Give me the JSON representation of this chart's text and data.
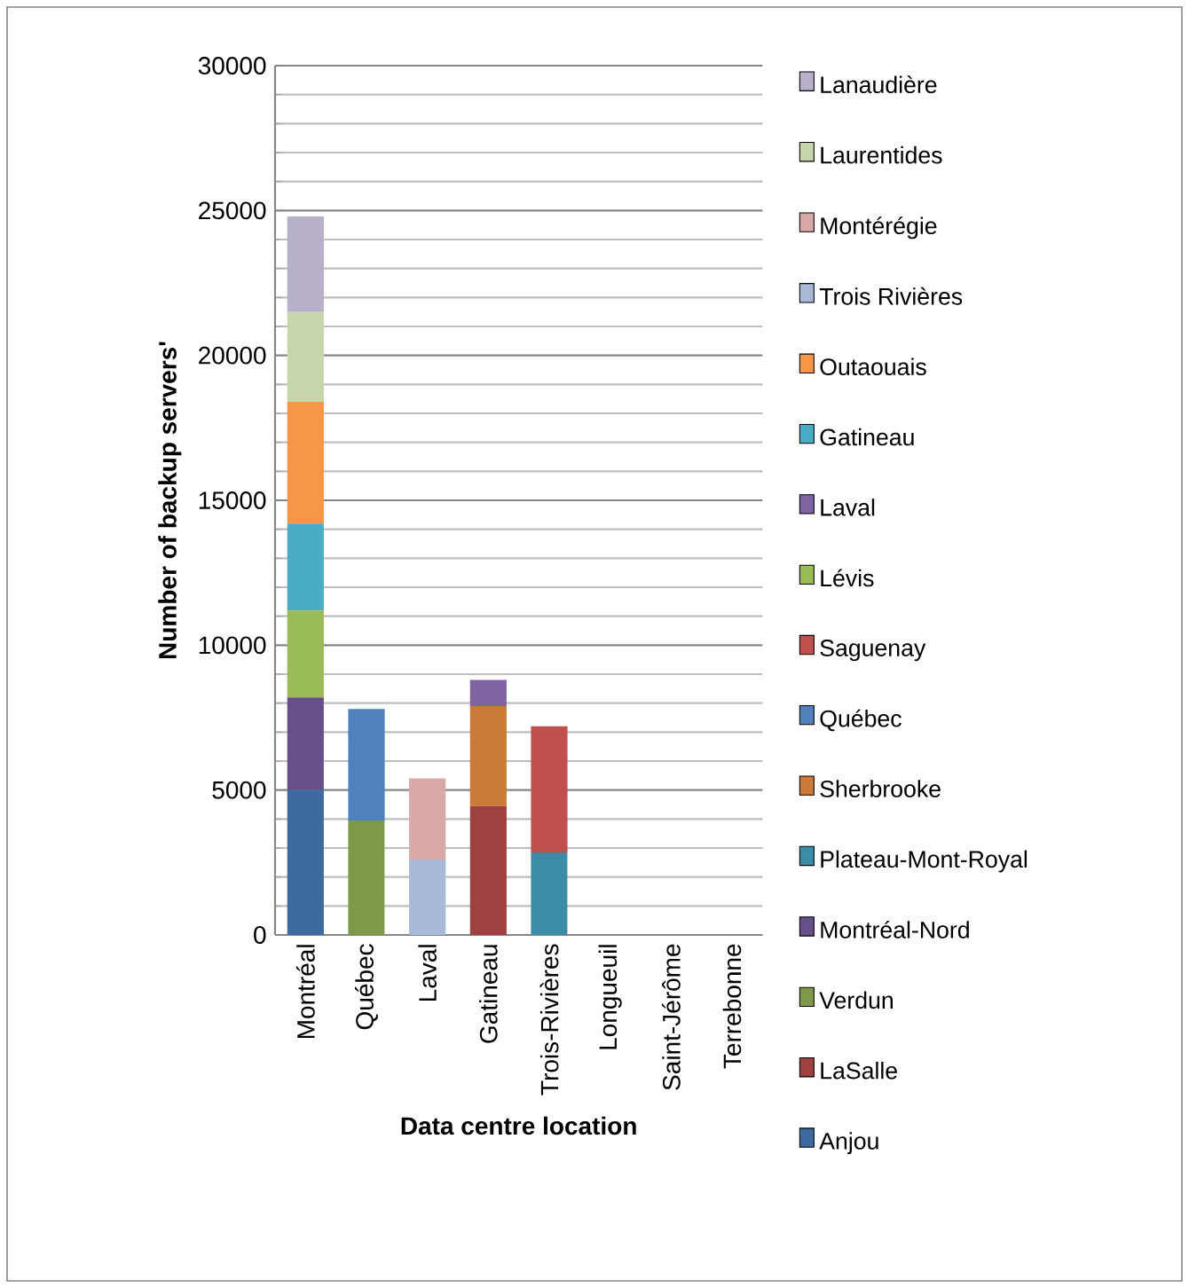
{
  "chart_data": {
    "type": "bar",
    "stacked": true,
    "xlabel": "Data centre location",
    "ylabel": "Number of backup servers'",
    "categories": [
      "Montréal",
      "Québec",
      "Laval",
      "Gatineau",
      "Trois-Rivières",
      "Longueuil",
      "Saint-Jérôme",
      "Terrebonne"
    ],
    "ylim": [
      0,
      30000
    ],
    "yticks": [
      0,
      5000,
      10000,
      15000,
      20000,
      25000,
      30000
    ],
    "grid": "y",
    "legend": "right",
    "series": [
      {
        "name": "Anjou",
        "color": "#3e6b9f",
        "values": [
          5000,
          null,
          null,
          null,
          null,
          null,
          null,
          null
        ]
      },
      {
        "name": "LaSalle",
        "color": "#9e4140",
        "values": [
          null,
          null,
          null,
          4450,
          null,
          null,
          null,
          null
        ]
      },
      {
        "name": "Verdun",
        "color": "#7e9a48",
        "values": [
          null,
          3950,
          null,
          null,
          null,
          null,
          null,
          null
        ]
      },
      {
        "name": "Montréal-Nord",
        "color": "#674f89",
        "values": [
          3200,
          null,
          null,
          null,
          null,
          null,
          null,
          null
        ]
      },
      {
        "name": "Plateau-Mont-Royal",
        "color": "#3b8ca6",
        "values": [
          null,
          null,
          null,
          null,
          2850,
          null,
          null,
          null
        ]
      },
      {
        "name": "Sherbrooke",
        "color": "#cc7a38",
        "values": [
          null,
          null,
          null,
          3450,
          null,
          null,
          null,
          null
        ]
      },
      {
        "name": "Québec",
        "color": "#4f81bd",
        "values": [
          null,
          3850,
          null,
          null,
          null,
          null,
          null,
          null
        ]
      },
      {
        "name": "Saguenay",
        "color": "#c0504d",
        "values": [
          null,
          null,
          null,
          null,
          4350,
          null,
          null,
          null
        ]
      },
      {
        "name": "Lévis",
        "color": "#9bbb59",
        "values": [
          3000,
          null,
          null,
          null,
          null,
          null,
          null,
          null
        ]
      },
      {
        "name": "Laval",
        "color": "#8064a2",
        "values": [
          null,
          null,
          null,
          900,
          null,
          null,
          null,
          null
        ]
      },
      {
        "name": "Gatineau",
        "color": "#4bacc6",
        "values": [
          3000,
          null,
          null,
          null,
          null,
          null,
          null,
          null
        ]
      },
      {
        "name": "Outaouais",
        "color": "#f79646",
        "values": [
          4200,
          null,
          null,
          null,
          null,
          null,
          null,
          null
        ]
      },
      {
        "name": "Trois Rivières",
        "color": "#a9b9d8",
        "values": [
          null,
          null,
          2600,
          null,
          null,
          null,
          null,
          null
        ]
      },
      {
        "name": "Montérégie",
        "color": "#d8a9a8",
        "values": [
          null,
          null,
          2800,
          null,
          null,
          null,
          null,
          null
        ]
      },
      {
        "name": "Laurentides",
        "color": "#c5d6aa",
        "values": [
          3100,
          null,
          null,
          null,
          null,
          null,
          null,
          null
        ]
      },
      {
        "name": "Lanaudière",
        "color": "#b8afcb",
        "values": [
          3300,
          null,
          null,
          null,
          null,
          null,
          null,
          null
        ]
      }
    ]
  }
}
